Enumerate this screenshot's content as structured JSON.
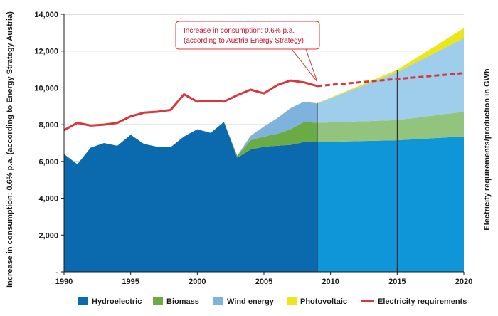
{
  "chart_data": {
    "type": "area",
    "y_left_label": "Increase in consumption: 0.6% p.a. (according to Energy Strategy Austria)",
    "y_right_label": "Electricity requirements/production in GWh",
    "ylim": [
      0,
      14000
    ],
    "xlim": [
      1990,
      2020
    ],
    "y_ticks": [
      "-",
      "2,000",
      "4,000",
      "6,000",
      "8,000",
      "10,000",
      "12,000",
      "14,000"
    ],
    "x_ticks": [
      "1990",
      "1995",
      "2000",
      "2005",
      "2010",
      "2015",
      "2020"
    ],
    "annotation": [
      "Increase in consumption: 0.6% p.a.",
      "(according to Austria Energy Strategy)"
    ],
    "colors": {
      "hydro_hist": "#0b6aad",
      "hydro_proj": "#0e96d8",
      "biomass_hist": "#6aab45",
      "biomass_proj": "#93c47d",
      "wind_hist": "#7fb3dd",
      "wind_proj": "#9fcdec",
      "pv": "#ede51b",
      "requirements": "#d8373d",
      "annotation": "#c8102e"
    },
    "years": [
      1990,
      1991,
      1992,
      1993,
      1994,
      1995,
      1996,
      1997,
      1998,
      1999,
      2000,
      2001,
      2002,
      2003,
      2004,
      2005,
      2006,
      2007,
      2008,
      2009,
      2015,
      2020
    ],
    "series": [
      {
        "name": "Hydroelectric",
        "values": [
          6400,
          5850,
          6750,
          7000,
          6850,
          7450,
          6950,
          6800,
          6780,
          7350,
          7750,
          7550,
          8150,
          6200,
          6650,
          6800,
          6850,
          6900,
          7050,
          7050,
          7150,
          7350
        ]
      },
      {
        "name": "Biomass",
        "values": [
          0,
          0,
          0,
          0,
          0,
          0,
          0,
          0,
          0,
          0,
          0,
          0,
          0,
          100,
          500,
          550,
          650,
          850,
          1100,
          1050,
          1100,
          1350
        ]
      },
      {
        "name": "Wind energy",
        "values": [
          0,
          0,
          0,
          0,
          0,
          0,
          0,
          0,
          0,
          0,
          0,
          0,
          0,
          20,
          250,
          550,
          850,
          1150,
          1100,
          1050,
          2600,
          4000
        ]
      },
      {
        "name": "Photovoltaic",
        "values": [
          0,
          0,
          0,
          0,
          0,
          0,
          0,
          0,
          0,
          0,
          0,
          0,
          0,
          0,
          0,
          0,
          0,
          0,
          0,
          20,
          120,
          550
        ]
      }
    ],
    "requirements": {
      "name": "Electricity requirements",
      "x": [
        1990,
        1991,
        1992,
        1993,
        1994,
        1995,
        1996,
        1997,
        1998,
        1999,
        2000,
        2001,
        2002,
        2003,
        2004,
        2005,
        2006,
        2007,
        2008,
        2009
      ],
      "values": [
        7700,
        8100,
        7950,
        8000,
        8100,
        8450,
        8650,
        8700,
        8800,
        9650,
        9250,
        9300,
        9250,
        9600,
        9900,
        9700,
        10150,
        10400,
        10300,
        10100
      ],
      "projection": {
        "x": [
          2009,
          2020
        ],
        "values": [
          10100,
          10800
        ]
      }
    },
    "markers": [
      2009,
      2015
    ],
    "legend": [
      "Hydroelectric",
      "Biomass",
      "Wind energy",
      "Photovoltaic",
      "Electricity requirements"
    ]
  }
}
